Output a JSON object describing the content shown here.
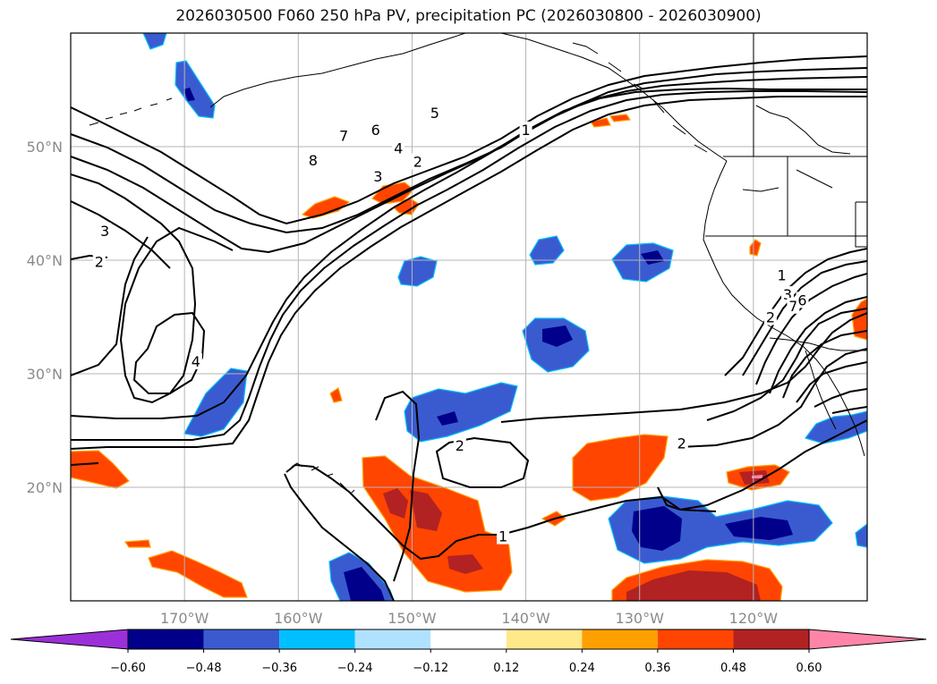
{
  "title": "2026030500 F060 250 hPa PV, precipitation PC (2026030800 - 2026030900)",
  "map": {
    "lon_range": [
      -180,
      -110
    ],
    "lat_range": [
      10,
      60
    ],
    "lon_ticks": [
      {
        "lon": -170,
        "label": "170°W"
      },
      {
        "lon": -160,
        "label": "160°W"
      },
      {
        "lon": -150,
        "label": "150°W"
      },
      {
        "lon": -140,
        "label": "140°W"
      },
      {
        "lon": -130,
        "label": "130°W"
      },
      {
        "lon": -120,
        "label": "120°W"
      }
    ],
    "lat_ticks": [
      {
        "lat": 50,
        "label": "50°N"
      },
      {
        "lat": 40,
        "label": "40°N"
      },
      {
        "lat": 30,
        "label": "30°N"
      },
      {
        "lat": 20,
        "label": "20°N"
      }
    ],
    "grid": true
  },
  "colorbar": {
    "labels": [
      "−0.60",
      "−0.48",
      "−0.36",
      "−0.24",
      "−0.12",
      "0.12",
      "0.24",
      "0.36",
      "0.48",
      "0.60"
    ],
    "colors": [
      "#9b30d9",
      "#00008b",
      "#3a5bd0",
      "#00bfff",
      "#b0e2ff",
      "#ffffff",
      "#ffe98a",
      "#ffa000",
      "#ff4500",
      "#b22222",
      "#ff85a8"
    ]
  },
  "pv_contour_labels": [
    {
      "text": "8",
      "lon": -158.7,
      "lat": 48.8
    },
    {
      "text": "7",
      "lon": -156.0,
      "lat": 51.0
    },
    {
      "text": "6",
      "lon": -153.2,
      "lat": 51.5
    },
    {
      "text": "5",
      "lon": -148.0,
      "lat": 53.0
    },
    {
      "text": "4",
      "lon": -151.2,
      "lat": 49.9
    },
    {
      "text": "3",
      "lon": -153.0,
      "lat": 47.4
    },
    {
      "text": "2",
      "lon": -149.5,
      "lat": 48.7
    },
    {
      "text": "1",
      "lon": -140.0,
      "lat": 51.5
    },
    {
      "text": "3",
      "lon": -177.0,
      "lat": 42.6
    },
    {
      "text": "2",
      "lon": -177.5,
      "lat": 39.9
    },
    {
      "text": "4",
      "lon": -169.0,
      "lat": 31.1
    },
    {
      "text": "2",
      "lon": -145.8,
      "lat": 23.7
    },
    {
      "text": "1",
      "lon": -142.0,
      "lat": 15.7
    },
    {
      "text": "2",
      "lon": -126.3,
      "lat": 23.9
    },
    {
      "text": "1",
      "lon": -117.5,
      "lat": 38.7
    },
    {
      "text": "3",
      "lon": -117.0,
      "lat": 37.0
    },
    {
      "text": "2",
      "lon": -118.5,
      "lat": 35.0
    },
    {
      "text": "7",
      "lon": -116.5,
      "lat": 36.0
    },
    {
      "text": "6",
      "lon": -115.7,
      "lat": 36.5
    }
  ],
  "shading": {
    "negative_blobs": [
      {
        "lon": -178.0,
        "lat": 59.0,
        "level": "−0.36"
      },
      {
        "lon": -172.4,
        "lat": 55.0,
        "level": "−0.36"
      },
      {
        "lon": -166.0,
        "lat": 28.5,
        "level": "−0.36"
      },
      {
        "lon": -151.0,
        "lat": 38.9,
        "level": "−0.36"
      },
      {
        "lon": -138.0,
        "lat": 40.5,
        "level": "−0.36"
      },
      {
        "lon": -130.0,
        "lat": 39.7,
        "level": "−0.36"
      },
      {
        "lon": -137.0,
        "lat": 33.0,
        "level": "−0.48"
      },
      {
        "lon": -144.5,
        "lat": 26.0,
        "level": "−0.36"
      },
      {
        "lon": -155.0,
        "lat": 12.0,
        "level": "−0.48"
      },
      {
        "lon": -130.0,
        "lat": 16.5,
        "level": "−0.48"
      },
      {
        "lon": -120.0,
        "lat": 16.0,
        "level": "−0.48"
      },
      {
        "lon": -112.0,
        "lat": 25.5,
        "level": "−0.36"
      },
      {
        "lon": -110.2,
        "lat": 15.0,
        "level": "−0.36"
      }
    ],
    "positive_blobs": [
      {
        "lon": -151.8,
        "lat": 45.0,
        "level": "0.36"
      },
      {
        "lon": -158.7,
        "lat": 43.5,
        "level": "0.36"
      },
      {
        "lon": -149.7,
        "lat": 43.3,
        "level": "0.36"
      },
      {
        "lon": -176.8,
        "lat": 21.5,
        "level": "0.36"
      },
      {
        "lon": -170.0,
        "lat": 12.0,
        "level": "0.36"
      },
      {
        "lon": -168.0,
        "lat": 29.6,
        "level": "0.36"
      },
      {
        "lon": -149.0,
        "lat": 16.0,
        "level": "0.48"
      },
      {
        "lon": -133.0,
        "lat": 20.7,
        "level": "0.36"
      },
      {
        "lon": -120.0,
        "lat": 21.0,
        "level": "0.48"
      },
      {
        "lon": -125.0,
        "lat": 11.5,
        "level": "0.48"
      },
      {
        "lon": -110.5,
        "lat": 34.5,
        "level": "0.36"
      },
      {
        "lon": -120.5,
        "lat": 41.0,
        "level": "0.36"
      },
      {
        "lon": -139.0,
        "lat": 16.3,
        "level": "0.36"
      },
      {
        "lon": -144.0,
        "lat": 51.9,
        "level": "0.36"
      }
    ]
  }
}
